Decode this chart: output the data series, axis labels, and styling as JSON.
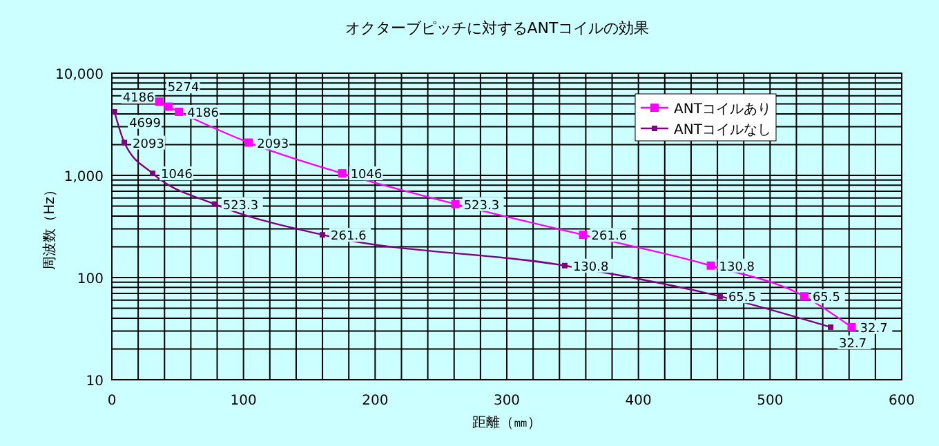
{
  "chart_data": {
    "type": "line",
    "title": "オクターブピッチに対するANTコイルの効果",
    "xlabel": "距離（㎜）",
    "ylabel": "周波数（Hz）",
    "log": "y",
    "grid": true,
    "legend": "top right",
    "marker": "square",
    "data_labels": true,
    "line_style": "solid",
    "xlim": [
      0,
      600
    ],
    "ylim": [
      10,
      10000
    ],
    "xticks": [
      0,
      {
        "value": 20,
        "label": null
      },
      {
        "value": 40,
        "label": null
      },
      {
        "value": 60,
        "label": null
      },
      {
        "value": 80,
        "label": null
      },
      100,
      {
        "value": 120,
        "label": null
      },
      {
        "value": 140,
        "label": null
      },
      {
        "value": 160,
        "label": null
      },
      {
        "value": 180,
        "label": null
      },
      200,
      {
        "value": 220,
        "label": null
      },
      {
        "value": 240,
        "label": null
      },
      {
        "value": 260,
        "label": null
      },
      {
        "value": 280,
        "label": null
      },
      300,
      {
        "value": 320,
        "label": null
      },
      {
        "value": 340,
        "label": null
      },
      {
        "value": 360,
        "label": null
      },
      {
        "value": 380,
        "label": null
      },
      400,
      {
        "value": 420,
        "label": null
      },
      {
        "value": 440,
        "label": null
      },
      {
        "value": 460,
        "label": null
      },
      {
        "value": 480,
        "label": null
      },
      500,
      {
        "value": 520,
        "label": null
      },
      {
        "value": 540,
        "label": null
      },
      {
        "value": 560,
        "label": null
      },
      {
        "value": 580,
        "label": null
      },
      600
    ],
    "yticks": [
      10,
      {
        "value": 20,
        "label": null
      },
      {
        "value": 30,
        "label": null
      },
      {
        "value": 40,
        "label": null
      },
      {
        "value": 50,
        "label": null
      },
      {
        "value": 60,
        "label": null
      },
      {
        "value": 70,
        "label": null
      },
      {
        "value": 80,
        "label": null
      },
      {
        "value": 90,
        "label": null
      },
      100,
      {
        "value": 200,
        "label": null
      },
      {
        "value": 300,
        "label": null
      },
      {
        "value": 400,
        "label": null
      },
      {
        "value": 500,
        "label": null
      },
      {
        "value": 600,
        "label": null
      },
      {
        "value": 700,
        "label": null
      },
      {
        "value": 800,
        "label": null
      },
      {
        "value": 900,
        "label": null
      },
      {
        "value": 1000,
        "label": "1,000"
      },
      {
        "value": 2000,
        "label": null
      },
      {
        "value": 3000,
        "label": null
      },
      {
        "value": 4000,
        "label": null
      },
      {
        "value": 5000,
        "label": null
      },
      {
        "value": 6000,
        "label": null
      },
      {
        "value": 7000,
        "label": null
      },
      {
        "value": 8000,
        "label": null
      },
      {
        "value": 9000,
        "label": null
      },
      {
        "value": 10000,
        "label": "10,000"
      }
    ],
    "series": [
      {
        "name": "ANTコイルあり",
        "color": "#ff00ff",
        "x": [
          36,
          43,
          51,
          104,
          175,
          261,
          358,
          455,
          526,
          562
        ],
        "values": [
          5274,
          4699,
          4186,
          2093,
          1046,
          523.3,
          261.6,
          130.8,
          65.5,
          32.7
        ]
      },
      {
        "name": "ANTコイルなし",
        "color": "#800080",
        "x": [
          2,
          9.5,
          31,
          78,
          160,
          344,
          462,
          546
        ],
        "values": [
          4186,
          2093,
          1046,
          523.3,
          261.6,
          130.8,
          65.5,
          32.7
        ]
      }
    ]
  }
}
